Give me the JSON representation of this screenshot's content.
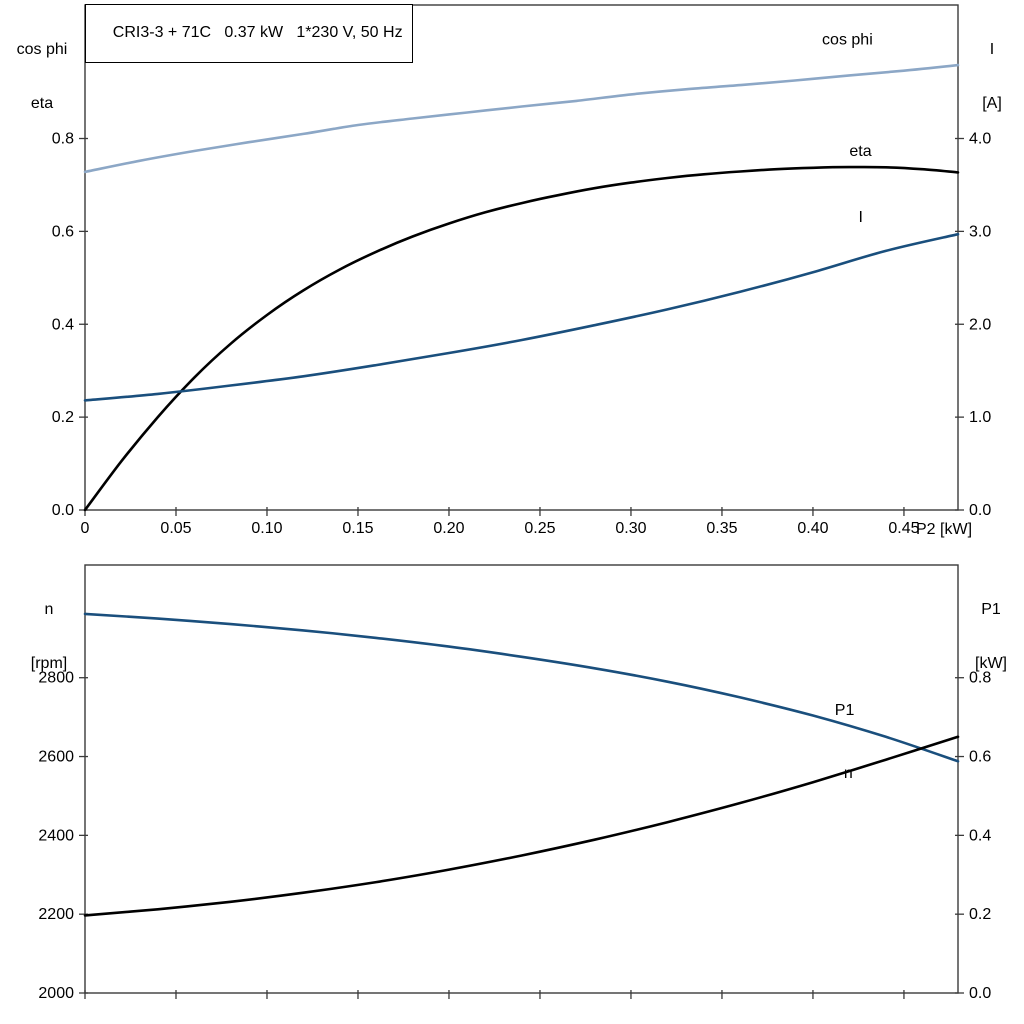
{
  "header": {
    "title": "CRI3-3 + 71C   0.37 kW   1*230 V, 50 Hz"
  },
  "colors": {
    "light_blue": "#8ca7c6",
    "dark_blue": "#1a4f7d",
    "black": "#000000",
    "frame": "#3a3a3a"
  },
  "chart_data": [
    {
      "id": "motor-performance-top",
      "type": "line",
      "grid": false,
      "legend": "inline-curve-labels",
      "x_axis": {
        "label": "P2 [kW]",
        "range": [
          0,
          0.4797
        ],
        "tick_values": [
          0,
          0.05,
          0.1,
          0.15,
          0.2,
          0.25,
          0.3,
          0.35,
          0.4,
          0.45
        ],
        "tick_labels": [
          "0",
          "0.05",
          "0.10",
          "0.15",
          "0.20",
          "0.25",
          "0.30",
          "0.35",
          "0.40",
          "0.45"
        ]
      },
      "left_axis": {
        "title_lines": [
          "cos phi",
          "eta"
        ],
        "range": [
          0,
          1.0875
        ],
        "tick_values": [
          0,
          0.2,
          0.4,
          0.6,
          0.8
        ],
        "tick_labels": [
          "0.0",
          "0.2",
          "0.4",
          "0.6",
          "0.8"
        ]
      },
      "right_axis": {
        "title_lines": [
          "I",
          "[A]"
        ],
        "range": [
          0,
          5.4375
        ],
        "tick_values": [
          0,
          1,
          2,
          3,
          4
        ],
        "tick_labels": [
          "0.0",
          "1.0",
          "2.0",
          "3.0",
          "4.0"
        ]
      },
      "series": [
        {
          "name": "cos phi",
          "axis": "left",
          "color": "#8ca7c6",
          "label": {
            "text": "cos phi",
            "x": 0.405,
            "y": 1.002
          },
          "points": {
            "x": [
              0,
              0.03,
              0.06,
              0.09,
              0.12,
              0.15,
              0.18,
              0.21,
              0.24,
              0.27,
              0.3,
              0.33,
              0.36,
              0.39,
              0.42,
              0.45,
              0.4797
            ],
            "y": [
              0.728,
              0.752,
              0.773,
              0.792,
              0.81,
              0.829,
              0.843,
              0.856,
              0.869,
              0.881,
              0.895,
              0.906,
              0.915,
              0.925,
              0.936,
              0.946,
              0.958
            ]
          }
        },
        {
          "name": "eta",
          "axis": "left",
          "color": "#000000",
          "label": {
            "text": "eta",
            "x": 0.42,
            "y": 0.762
          },
          "points": {
            "x": [
              0,
              0.02,
              0.04,
              0.06,
              0.08,
              0.1,
              0.12,
              0.14,
              0.16,
              0.18,
              0.2,
              0.22,
              0.24,
              0.26,
              0.28,
              0.3,
              0.32,
              0.34,
              0.36,
              0.38,
              0.4,
              0.42,
              0.44,
              0.46,
              0.4797
            ],
            "y": [
              0.0,
              0.105,
              0.2,
              0.285,
              0.358,
              0.42,
              0.473,
              0.518,
              0.556,
              0.589,
              0.617,
              0.641,
              0.661,
              0.678,
              0.693,
              0.705,
              0.715,
              0.723,
              0.729,
              0.734,
              0.737,
              0.7385,
              0.738,
              0.734,
              0.727
            ]
          }
        },
        {
          "name": "I",
          "axis": "right",
          "color": "#1a4f7d",
          "label": {
            "text": "I",
            "x": 0.425,
            "y": 3.1
          },
          "points": {
            "x": [
              0,
              0.04,
              0.08,
              0.12,
              0.16,
              0.2,
              0.24,
              0.28,
              0.32,
              0.36,
              0.4,
              0.44,
              0.4797
            ],
            "y": [
              1.18,
              1.25,
              1.34,
              1.44,
              1.56,
              1.69,
              1.83,
              1.99,
              2.16,
              2.35,
              2.56,
              2.79,
              2.97
            ]
          }
        }
      ]
    },
    {
      "id": "motor-performance-bottom",
      "type": "line",
      "grid": false,
      "legend": "inline-curve-labels",
      "x_axis": {
        "label": "",
        "range": [
          0,
          0.4797
        ],
        "tick_values": [
          0,
          0.05,
          0.1,
          0.15,
          0.2,
          0.25,
          0.3,
          0.35,
          0.4,
          0.45
        ],
        "tick_labels": []
      },
      "left_axis": {
        "title_lines": [
          "n",
          "[rpm]"
        ],
        "range": [
          2000,
          3086
        ],
        "tick_values": [
          2000,
          2200,
          2400,
          2600,
          2800
        ],
        "tick_labels": [
          "2000",
          "2200",
          "2400",
          "2600",
          "2800"
        ]
      },
      "right_axis": {
        "title_lines": [
          "P1",
          "[kW]"
        ],
        "range": [
          0,
          1.086
        ],
        "tick_values": [
          0,
          0.2,
          0.4,
          0.6,
          0.8
        ],
        "tick_labels": [
          "0.0",
          "0.2",
          "0.4",
          "0.6",
          "0.8"
        ]
      },
      "series": [
        {
          "name": "n",
          "axis": "left",
          "color": "#1a4f7d",
          "label": {
            "text": "n",
            "x": 0.417,
            "y": 2545
          },
          "points": {
            "x": [
              0,
              0.04,
              0.08,
              0.12,
              0.16,
              0.2,
              0.24,
              0.28,
              0.32,
              0.36,
              0.4,
              0.44,
              0.4797
            ],
            "y": [
              2962,
              2950,
              2936,
              2920,
              2901,
              2879,
              2853,
              2824,
              2790,
              2750,
              2704,
              2650,
              2588
            ]
          }
        },
        {
          "name": "P1",
          "axis": "right",
          "color": "#000000",
          "label": {
            "text": "P1",
            "x": 0.412,
            "y": 0.705
          },
          "points": {
            "x": [
              0,
              0.04,
              0.08,
              0.12,
              0.16,
              0.2,
              0.24,
              0.28,
              0.32,
              0.36,
              0.4,
              0.44,
              0.4797
            ],
            "y": [
              0.197,
              0.2125,
              0.2315,
              0.2545,
              0.2815,
              0.313,
              0.349,
              0.389,
              0.4335,
              0.482,
              0.535,
              0.592,
              0.65
            ]
          }
        }
      ]
    }
  ]
}
